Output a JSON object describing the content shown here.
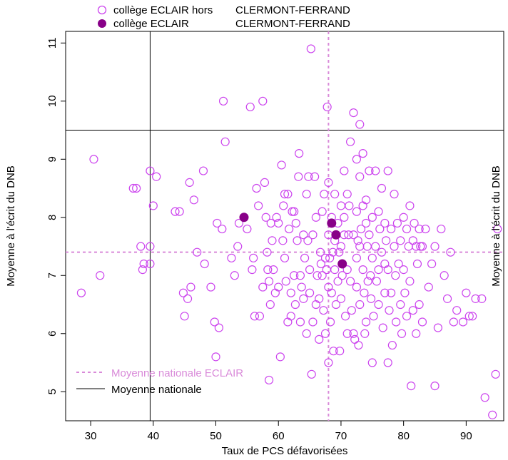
{
  "chart_data": {
    "type": "scatter",
    "xlabel": "Taux de PCS défavorisées",
    "ylabel": "Moyenne à l'écrit du DNB",
    "ylabel_right": "Moyenne à l'écrit du DNB",
    "xlim": [
      26,
      96
    ],
    "ylim": [
      4.5,
      11.2
    ],
    "xticks": [
      30,
      40,
      50,
      60,
      70,
      80,
      90
    ],
    "yticks": [
      5,
      6,
      7,
      8,
      9,
      10,
      11
    ],
    "grid": false,
    "legend_top": {
      "position": "top",
      "entries": [
        {
          "label_a": "collège ECLAIR hors",
          "label_b": "CLERMONT-FERRAND",
          "style": "open-circle"
        },
        {
          "label_a": "collège ECLAIR",
          "label_b": "CLERMONT-FERRAND",
          "style": "filled-circle"
        }
      ]
    },
    "legend_bottom": {
      "position": "bottom-left",
      "entries": [
        {
          "label": "Moyenne nationale ECLAIR",
          "style": "dashed-line"
        },
        {
          "label": "Moyenne nationale",
          "style": "solid-line"
        }
      ]
    },
    "reference_lines": {
      "national": {
        "x": 39.5,
        "y": 9.5
      },
      "eclair": {
        "x": 68,
        "y": 7.4
      }
    },
    "colors": {
      "open_points": "#cc44ee",
      "filled_points": "#880088",
      "eclair_line": "#d98ad9",
      "national_line": "#000000",
      "legend_eclair_text": "#d98ad9",
      "legend_national_text": "#000000",
      "top_legend_text": "#000000"
    },
    "series": [
      {
        "name": "collège ECLAIR hors CLERMONT-FERRAND",
        "marker": "open-circle",
        "points": [
          [
            28.5,
            6.7
          ],
          [
            30.5,
            9.0
          ],
          [
            31.5,
            7.0
          ],
          [
            36.8,
            8.5
          ],
          [
            37.3,
            8.5
          ],
          [
            38,
            7.5
          ],
          [
            38.3,
            7.1
          ],
          [
            38.5,
            7.2
          ],
          [
            39.5,
            7.5
          ],
          [
            39.5,
            7.2
          ],
          [
            39.5,
            8.8
          ],
          [
            40,
            8.2
          ],
          [
            40.5,
            8.7
          ],
          [
            43.5,
            8.1
          ],
          [
            44.2,
            8.1
          ],
          [
            44.8,
            6.7
          ],
          [
            45,
            6.3
          ],
          [
            45.5,
            6.6
          ],
          [
            45.8,
            8.6
          ],
          [
            46,
            6.8
          ],
          [
            46.5,
            8.3
          ],
          [
            47,
            7.4
          ],
          [
            48,
            8.8
          ],
          [
            48.2,
            7.2
          ],
          [
            49.2,
            6.8
          ],
          [
            49.8,
            6.2
          ],
          [
            50,
            5.6
          ],
          [
            50.2,
            7.9
          ],
          [
            50.5,
            6.1
          ],
          [
            51,
            7.8
          ],
          [
            51.2,
            10.0
          ],
          [
            51.5,
            9.3
          ],
          [
            52.5,
            7.3
          ],
          [
            53,
            7.0
          ],
          [
            53.5,
            7.5
          ],
          [
            53.7,
            7.9
          ],
          [
            54.5,
            8.0
          ],
          [
            55,
            7.8
          ],
          [
            55.5,
            9.9
          ],
          [
            55.8,
            7.1
          ],
          [
            56,
            7.3
          ],
          [
            56.2,
            6.3
          ],
          [
            56.5,
            8.5
          ],
          [
            56.8,
            8.2
          ],
          [
            57,
            6.3
          ],
          [
            57.5,
            10.0
          ],
          [
            57.5,
            6.8
          ],
          [
            57.8,
            8.6
          ],
          [
            58,
            8.0
          ],
          [
            58.2,
            7.4
          ],
          [
            58.3,
            7.1
          ],
          [
            58.5,
            6.9
          ],
          [
            58.5,
            5.2
          ],
          [
            58.7,
            6.5
          ],
          [
            58.8,
            7.9
          ],
          [
            59,
            7.6
          ],
          [
            59.2,
            7.1
          ],
          [
            59.5,
            6.7
          ],
          [
            59.7,
            8.0
          ],
          [
            60,
            7.9
          ],
          [
            60,
            6.8
          ],
          [
            60.3,
            5.6
          ],
          [
            60.5,
            8.9
          ],
          [
            60.7,
            7.6
          ],
          [
            60.8,
            8.2
          ],
          [
            61,
            8.4
          ],
          [
            61,
            7.3
          ],
          [
            61.2,
            6.9
          ],
          [
            61.5,
            8.4
          ],
          [
            61.5,
            6.2
          ],
          [
            61.7,
            7.8
          ],
          [
            62,
            6.7
          ],
          [
            62,
            6.3
          ],
          [
            62.2,
            8.1
          ],
          [
            62.5,
            8.1
          ],
          [
            62.5,
            7.0
          ],
          [
            62.7,
            6.5
          ],
          [
            62.8,
            7.9
          ],
          [
            63,
            7.6
          ],
          [
            63.2,
            8.7
          ],
          [
            63.3,
            9.1
          ],
          [
            63.5,
            7.0
          ],
          [
            63.5,
            6.2
          ],
          [
            63.7,
            6.8
          ],
          [
            64,
            7.7
          ],
          [
            64,
            6.6
          ],
          [
            64.2,
            7.3
          ],
          [
            64.5,
            8.4
          ],
          [
            64.5,
            6.0
          ],
          [
            64.7,
            7.6
          ],
          [
            64.8,
            8.7
          ],
          [
            65,
            7.1
          ],
          [
            65,
            6.7
          ],
          [
            65.2,
            10.9
          ],
          [
            65.3,
            5.3
          ],
          [
            65.5,
            7.7
          ],
          [
            65.5,
            6.2
          ],
          [
            65.8,
            8.7
          ],
          [
            66,
            8.0
          ],
          [
            66,
            6.5
          ],
          [
            66.2,
            7.0
          ],
          [
            66.5,
            6.6
          ],
          [
            66.5,
            5.9
          ],
          [
            66.7,
            7.4
          ],
          [
            66.8,
            7.2
          ],
          [
            67,
            8.1
          ],
          [
            67,
            7.0
          ],
          [
            67.2,
            6.4
          ],
          [
            67.3,
            8.4
          ],
          [
            67.5,
            7.3
          ],
          [
            67.5,
            6.0
          ],
          [
            67.7,
            7.1
          ],
          [
            67.8,
            9.9
          ],
          [
            68,
            8.6
          ],
          [
            68,
            7.7
          ],
          [
            68,
            6.8
          ],
          [
            68,
            5.5
          ],
          [
            68.2,
            7.3
          ],
          [
            68.3,
            6.2
          ],
          [
            68.5,
            8.0
          ],
          [
            68.5,
            6.7
          ],
          [
            68.7,
            7.4
          ],
          [
            68.8,
            5.7
          ],
          [
            69,
            8.4
          ],
          [
            69,
            7.6
          ],
          [
            69,
            7.1
          ],
          [
            69.2,
            6.5
          ],
          [
            69.5,
            7.9
          ],
          [
            69.5,
            6.9
          ],
          [
            69.7,
            7.4
          ],
          [
            69.8,
            5.7
          ],
          [
            70,
            8.2
          ],
          [
            70,
            7.5
          ],
          [
            70,
            6.6
          ],
          [
            70.2,
            7.0
          ],
          [
            70.5,
            8.8
          ],
          [
            70.5,
            8.0
          ],
          [
            70.5,
            7.7
          ],
          [
            70.7,
            6.3
          ],
          [
            71,
            8.4
          ],
          [
            71,
            7.1
          ],
          [
            71,
            6.0
          ],
          [
            71.2,
            7.7
          ],
          [
            71.3,
            8.2
          ],
          [
            71.5,
            9.3
          ],
          [
            71.5,
            6.9
          ],
          [
            71.7,
            6.4
          ],
          [
            72,
            9.8
          ],
          [
            72,
            7.7
          ],
          [
            72,
            6.0
          ],
          [
            72.2,
            5.9
          ],
          [
            72.5,
            9.0
          ],
          [
            72.5,
            8.1
          ],
          [
            72.5,
            7.3
          ],
          [
            72.5,
            6.8
          ],
          [
            72.7,
            7.6
          ],
          [
            72.8,
            5.8
          ],
          [
            73,
            9.6
          ],
          [
            73,
            8.7
          ],
          [
            73,
            7.5
          ],
          [
            73,
            6.5
          ],
          [
            73.2,
            7.8
          ],
          [
            73.5,
            9.1
          ],
          [
            73.5,
            8.2
          ],
          [
            73.5,
            7.1
          ],
          [
            73.7,
            6.7
          ],
          [
            73.8,
            6.0
          ],
          [
            74,
            8.3
          ],
          [
            74,
            7.9
          ],
          [
            74,
            6.2
          ],
          [
            74.2,
            7.5
          ],
          [
            74.3,
            6.9
          ],
          [
            74.5,
            8.8
          ],
          [
            74.5,
            7.7
          ],
          [
            74.7,
            7.0
          ],
          [
            74.8,
            6.6
          ],
          [
            75,
            8.0
          ],
          [
            75,
            7.3
          ],
          [
            75,
            5.5
          ],
          [
            75.2,
            6.3
          ],
          [
            75.5,
            8.8
          ],
          [
            75.5,
            7.5
          ],
          [
            75.7,
            6.9
          ],
          [
            76,
            8.1
          ],
          [
            76,
            7.1
          ],
          [
            76,
            6.5
          ],
          [
            76.2,
            7.8
          ],
          [
            76.5,
            8.5
          ],
          [
            76.5,
            7.4
          ],
          [
            76.7,
            6.1
          ],
          [
            77,
            7.9
          ],
          [
            77,
            7.2
          ],
          [
            77,
            6.7
          ],
          [
            77.2,
            7.6
          ],
          [
            77.5,
            8.8
          ],
          [
            77.5,
            7.1
          ],
          [
            77.5,
            5.5
          ],
          [
            77.7,
            6.4
          ],
          [
            78,
            7.8
          ],
          [
            78,
            6.7
          ],
          [
            78.2,
            5.8
          ],
          [
            78.5,
            8.4
          ],
          [
            78.5,
            7.5
          ],
          [
            78.7,
            7.0
          ],
          [
            78.8,
            6.2
          ],
          [
            79,
            7.9
          ],
          [
            79.2,
            7.2
          ],
          [
            79.5,
            7.6
          ],
          [
            79.5,
            6.5
          ],
          [
            79.7,
            6.0
          ],
          [
            80,
            8.0
          ],
          [
            80,
            7.1
          ],
          [
            80.2,
            6.7
          ],
          [
            80.5,
            7.8
          ],
          [
            80.5,
            6.3
          ],
          [
            80.8,
            7.5
          ],
          [
            81,
            8.2
          ],
          [
            81,
            6.9
          ],
          [
            81.2,
            5.1
          ],
          [
            81.5,
            7.6
          ],
          [
            81.5,
            6.4
          ],
          [
            81.7,
            7.9
          ],
          [
            82,
            7.5
          ],
          [
            82,
            6.0
          ],
          [
            82.2,
            7.2
          ],
          [
            82.5,
            7.8
          ],
          [
            82.5,
            6.5
          ],
          [
            82.7,
            7.5
          ],
          [
            83,
            7.5
          ],
          [
            83,
            6.2
          ],
          [
            83.5,
            7.8
          ],
          [
            84,
            6.8
          ],
          [
            84.5,
            7.2
          ],
          [
            85,
            7.5
          ],
          [
            85,
            5.1
          ],
          [
            85.5,
            6.1
          ],
          [
            86,
            7.8
          ],
          [
            86.5,
            7.0
          ],
          [
            87,
            6.6
          ],
          [
            87.5,
            7.4
          ],
          [
            88,
            6.2
          ],
          [
            88.5,
            6.4
          ],
          [
            89.5,
            6.2
          ],
          [
            90,
            6.7
          ],
          [
            90.5,
            6.3
          ],
          [
            91,
            6.3
          ],
          [
            91.5,
            6.6
          ],
          [
            92.5,
            6.6
          ],
          [
            93,
            4.9
          ],
          [
            94.2,
            4.6
          ],
          [
            94.7,
            5.3
          ],
          [
            95,
            7.8
          ]
        ]
      },
      {
        "name": "collège ECLAIR CLERMONT-FERRAND",
        "marker": "filled-circle",
        "points": [
          [
            54.5,
            8.0
          ],
          [
            68.5,
            7.9
          ],
          [
            69.2,
            7.7
          ],
          [
            70.2,
            7.2
          ]
        ]
      }
    ]
  }
}
